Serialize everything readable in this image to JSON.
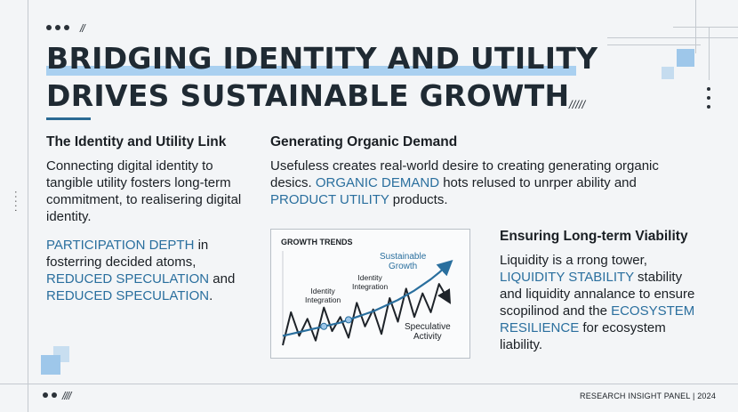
{
  "title": {
    "line1": "BRIDGING IDENTITY AND UTILITY",
    "line2": "DRIVES SUSTAINABLE GROWTH"
  },
  "side_label": "• • • • •",
  "section1": {
    "heading": "The Identity and Utility Link",
    "para1": "Connecting digital identity to tangible utility fosters long-term commitment, to realisering digital identity.",
    "para2_accent1": "PARTICIPATION DEPTH",
    "para2_text1": " in fosterring decided atoms,",
    "para2_accent2": "REDUCED SPECULATION",
    "para2_text2": " and",
    "para2_accent3": "REDUCED SPECULATION",
    "para2_text3": "."
  },
  "section2": {
    "heading": "Generating Organic Demand",
    "text1": "Usefuless creates real-world desire to creating generating organic desics. ",
    "accent1": "ORGANIC DEMAND",
    "text2": " hots relused to unrper ability and ",
    "accent2": "PRODUCT UTILITY",
    "text3": " products."
  },
  "section3": {
    "heading": "Ensuring Long-term Viability",
    "text1": "Liquidity is a rrong tower, ",
    "accent1": "LIQUIDITY STABILITY",
    "text2": " stability and liquidity annalance to ensure scopilinod and the ",
    "accent2": "ECOSYSTEM RESILIENCE",
    "text3": " for ecosystem liability."
  },
  "chart_data": {
    "type": "line",
    "title": "GROWTH TRENDS",
    "x": [
      0,
      1,
      2,
      3,
      4,
      5,
      6,
      7,
      8,
      9,
      10,
      11,
      12,
      13,
      14,
      15,
      16,
      17,
      18,
      19,
      20
    ],
    "series": [
      {
        "name": "Sustainable Growth",
        "values": [
          10,
          12,
          14,
          16,
          18,
          20,
          22,
          24,
          27,
          30,
          33,
          36,
          40,
          44,
          48,
          53,
          58,
          64,
          70,
          77,
          85
        ]
      },
      {
        "name": "Speculative Activity",
        "values": [
          0,
          35,
          10,
          28,
          5,
          40,
          15,
          30,
          8,
          45,
          20,
          38,
          12,
          50,
          25,
          60,
          30,
          55,
          35,
          65,
          50
        ]
      }
    ],
    "annotations": [
      {
        "label": "Identity Integration",
        "x": 5
      },
      {
        "label": "Identity Integration",
        "x": 8
      }
    ],
    "series_labels": [
      "Sustainable Growth",
      "Speculative Activity"
    ],
    "ylim": [
      0,
      100
    ],
    "xlabel": "",
    "ylabel": "",
    "colors": {
      "growth": "#2a6f9e",
      "speculative": "#1e2329"
    }
  },
  "chart_labels": {
    "sustainable_line1": "Sustainable",
    "sustainable_line2": "Growth",
    "speculative_line1": "Speculative",
    "speculative_line2": "Activity",
    "identity1_line1": "Identity",
    "identity1_line2": "Integration",
    "identity2_line1": "Identity",
    "identity2_line2": "Integration"
  },
  "footer": {
    "label": "RESEARCH INSIGHT PANEL | 2024"
  },
  "colors": {
    "accent": "#2a6f9e",
    "highlight": "#a9d0f0",
    "background": "#f3f5f7"
  }
}
